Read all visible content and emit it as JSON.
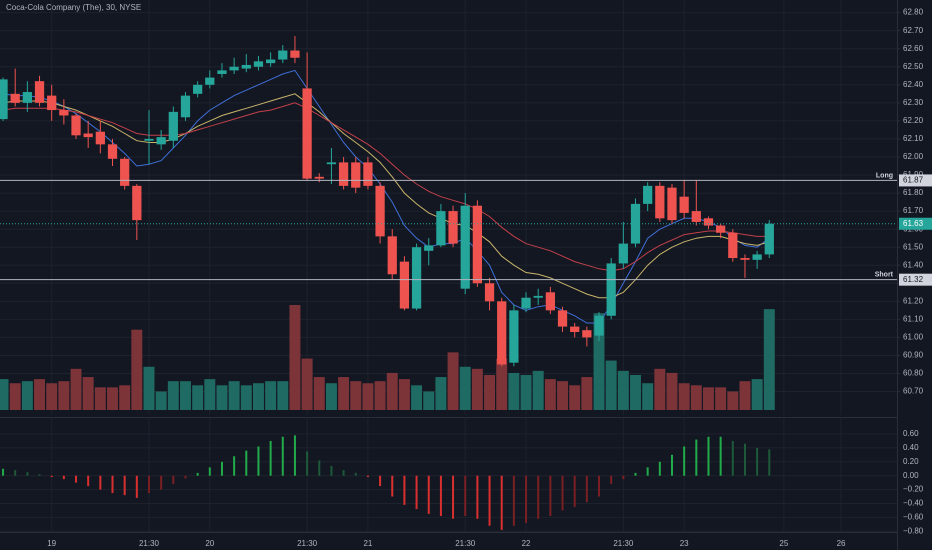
{
  "chart_data": {
    "type": "candlestick",
    "title": "Coca-Cola Company (The), 30, NYSE",
    "x": [
      0,
      1,
      2,
      3,
      4,
      5,
      6,
      7,
      8,
      9,
      10,
      11,
      12,
      13,
      14,
      15,
      16,
      17,
      18,
      19,
      20,
      21,
      22,
      23,
      24,
      25,
      26,
      27,
      28,
      29,
      30,
      31,
      32,
      33,
      34,
      35,
      36,
      37,
      38,
      39,
      40,
      41,
      42,
      43,
      44,
      45,
      46,
      47,
      48,
      49,
      50,
      51,
      52,
      53,
      54,
      55,
      56,
      57,
      58,
      59,
      60,
      61,
      62,
      63
    ],
    "xlim": [
      -0.25,
      73.5
    ],
    "xticks": [
      {
        "value": 4,
        "label": "19"
      },
      {
        "value": 12,
        "label": "21:30"
      },
      {
        "value": 17,
        "label": "20"
      },
      {
        "value": 25,
        "label": "21:30"
      },
      {
        "value": 30,
        "label": "21"
      },
      {
        "value": 38,
        "label": "21:30"
      },
      {
        "value": 43,
        "label": "22"
      },
      {
        "value": 51,
        "label": "21:30"
      },
      {
        "value": 56,
        "label": "23"
      },
      {
        "value": 64.2,
        "label": "25"
      },
      {
        "value": 68.9,
        "label": "26"
      }
    ],
    "open": [
      62.21,
      62.35,
      62.3,
      62.42,
      62.34,
      62.26,
      62.23,
      62.13,
      62.14,
      62.07,
      61.99,
      61.84,
      62.09,
      62.07,
      62.09,
      62.22,
      62.35,
      62.4,
      62.46,
      62.48,
      62.49,
      62.5,
      62.52,
      62.54,
      62.59,
      62.38,
      61.89,
      61.96,
      61.97,
      61.97,
      61.97,
      61.84,
      61.56,
      61.42,
      61.16,
      61.48,
      61.51,
      61.7,
      61.27,
      61.73,
      61.3,
      61.2,
      60.86,
      61.16,
      61.22,
      61.25,
      61.15,
      61.06,
      61.04,
      61.01,
      61.12,
      61.41,
      61.52,
      61.74,
      61.84,
      61.83,
      61.78,
      61.7,
      61.66,
      61.62,
      61.58,
      61.44,
      61.43,
      61.46
    ],
    "high": [
      62.44,
      62.49,
      62.42,
      62.45,
      62.4,
      62.32,
      62.24,
      62.2,
      62.2,
      62.1,
      62.0,
      61.85,
      62.26,
      62.15,
      62.28,
      62.36,
      62.42,
      62.48,
      62.52,
      62.55,
      62.57,
      62.56,
      62.58,
      62.62,
      62.67,
      62.58,
      61.91,
      62.05,
      62.0,
      62.0,
      62.0,
      61.86,
      61.6,
      61.45,
      61.52,
      61.55,
      61.74,
      61.73,
      61.8,
      61.76,
      61.33,
      61.22,
      61.18,
      61.25,
      61.27,
      61.28,
      61.17,
      61.08,
      61.06,
      61.14,
      61.44,
      61.64,
      61.77,
      61.86,
      61.86,
      61.85,
      61.87,
      61.87,
      61.67,
      61.63,
      61.6,
      61.46,
      61.48,
      61.65
    ],
    "low": [
      62.2,
      62.28,
      62.25,
      62.28,
      62.2,
      62.18,
      62.1,
      62.05,
      62.02,
      61.95,
      61.82,
      61.54,
      61.96,
      62.04,
      62.05,
      62.2,
      62.33,
      62.38,
      62.44,
      62.46,
      62.47,
      62.48,
      62.5,
      62.52,
      62.52,
      61.87,
      61.86,
      61.85,
      61.82,
      61.8,
      61.82,
      61.52,
      61.32,
      61.15,
      61.15,
      61.4,
      61.5,
      61.5,
      61.24,
      61.28,
      61.15,
      60.84,
      60.84,
      61.14,
      61.18,
      61.13,
      61.03,
      61.0,
      60.95,
      60.98,
      61.1,
      61.38,
      61.5,
      61.7,
      61.64,
      61.63,
      61.66,
      61.62,
      61.6,
      61.55,
      61.42,
      61.33,
      61.38,
      61.44
    ],
    "close": [
      62.43,
      62.3,
      62.36,
      62.3,
      62.26,
      62.23,
      62.12,
      62.11,
      62.07,
      61.99,
      61.84,
      61.65,
      62.1,
      62.11,
      62.25,
      62.34,
      62.4,
      62.44,
      62.48,
      62.5,
      62.51,
      62.53,
      62.54,
      62.59,
      62.55,
      61.88,
      61.88,
      61.97,
      61.84,
      61.83,
      61.84,
      61.56,
      61.35,
      61.16,
      61.5,
      61.51,
      61.7,
      61.52,
      61.73,
      61.3,
      61.2,
      60.85,
      61.15,
      61.22,
      61.23,
      61.15,
      61.06,
      61.03,
      61.0,
      61.12,
      61.41,
      61.52,
      61.74,
      61.84,
      61.66,
      61.65,
      61.69,
      61.64,
      61.62,
      61.58,
      61.44,
      61.43,
      61.46,
      61.63
    ],
    "up_color": "#26a69a",
    "down_color": "#ef5350",
    "ylim": [
      60.57,
      62.87
    ],
    "yticks": [
      {
        "value": 62.8,
        "label": "62.80"
      },
      {
        "value": 62.7,
        "label": "62.70"
      },
      {
        "value": 62.6,
        "label": "62.60"
      },
      {
        "value": 62.5,
        "label": "62.50"
      },
      {
        "value": 62.4,
        "label": "62.40"
      },
      {
        "value": 62.3,
        "label": "62.30"
      },
      {
        "value": 62.2,
        "label": "62.20"
      },
      {
        "value": 62.1,
        "label": "62.10"
      },
      {
        "value": 62.0,
        "label": "62.00"
      },
      {
        "value": 61.9,
        "label": "61.90"
      },
      {
        "value": 61.8,
        "label": "61.80"
      },
      {
        "value": 61.7,
        "label": "61.70"
      },
      {
        "value": 61.6,
        "label": "61.60"
      },
      {
        "value": 61.5,
        "label": "61.50"
      },
      {
        "value": 61.4,
        "label": "61.40"
      },
      {
        "value": 61.3,
        "label": "61.30"
      },
      {
        "value": 61.2,
        "label": "61.20"
      },
      {
        "value": 61.1,
        "label": "61.10"
      },
      {
        "value": 61.0,
        "label": "61.00"
      },
      {
        "value": 60.9,
        "label": "60.90"
      },
      {
        "value": 60.8,
        "label": "60.80"
      },
      {
        "value": 60.7,
        "label": "60.70"
      }
    ],
    "grid": true,
    "volume": [
      30,
      26,
      28,
      30,
      26,
      28,
      40,
      32,
      22,
      22,
      24,
      78,
      42,
      18,
      28,
      28,
      24,
      30,
      24,
      28,
      24,
      26,
      28,
      28,
      102,
      50,
      32,
      26,
      32,
      28,
      26,
      28,
      36,
      30,
      24,
      18,
      32,
      56,
      42,
      40,
      34,
      50,
      36,
      34,
      38,
      30,
      28,
      24,
      32,
      94,
      48,
      38,
      34,
      26,
      40,
      36,
      26,
      24,
      22,
      22,
      18,
      28,
      30,
      98
    ],
    "volume_up_color": "#1f6b64",
    "volume_down_color": "#7c3439",
    "moving_averages": [
      {
        "color": "#3f6fd8",
        "values": [
          62.35,
          62.34,
          62.34,
          62.33,
          62.31,
          62.28,
          62.24,
          62.19,
          62.14,
          62.08,
          62.02,
          61.95,
          61.96,
          61.98,
          62.05,
          62.12,
          62.2,
          62.26,
          62.3,
          62.34,
          62.37,
          62.4,
          62.43,
          62.46,
          62.48,
          62.38,
          62.28,
          62.18,
          62.08,
          62.0,
          61.94,
          61.85,
          61.75,
          61.62,
          61.55,
          61.5,
          61.52,
          61.52,
          61.55,
          61.48,
          61.4,
          61.25,
          61.18,
          61.15,
          61.17,
          61.18,
          61.15,
          61.12,
          61.08,
          61.08,
          61.18,
          61.3,
          61.42,
          61.55,
          61.6,
          61.63,
          61.66,
          61.66,
          61.64,
          61.61,
          61.55,
          61.51,
          61.5,
          61.55
        ]
      },
      {
        "color": "#c9b46a",
        "values": [
          62.3,
          62.31,
          62.31,
          62.31,
          62.3,
          62.28,
          62.26,
          62.23,
          62.2,
          62.17,
          62.13,
          62.09,
          62.08,
          62.08,
          62.1,
          62.13,
          62.17,
          62.2,
          62.23,
          62.25,
          62.27,
          62.29,
          62.31,
          62.33,
          62.35,
          62.3,
          62.25,
          62.19,
          62.13,
          62.08,
          62.03,
          61.97,
          61.89,
          61.8,
          61.74,
          61.69,
          61.66,
          61.63,
          61.62,
          61.58,
          61.53,
          61.45,
          61.4,
          61.36,
          61.35,
          61.33,
          61.3,
          61.27,
          61.24,
          61.22,
          61.22,
          61.25,
          61.32,
          61.4,
          61.46,
          61.5,
          61.53,
          61.55,
          61.56,
          61.56,
          61.54,
          61.52,
          61.51,
          61.53
        ]
      },
      {
        "color": "#c2404a",
        "values": [
          62.26,
          62.27,
          62.27,
          62.27,
          62.27,
          62.26,
          62.25,
          62.23,
          62.21,
          62.19,
          62.16,
          62.13,
          62.12,
          62.12,
          62.12,
          62.13,
          62.15,
          62.17,
          62.19,
          62.21,
          62.23,
          62.25,
          62.26,
          62.28,
          62.3,
          62.27,
          62.23,
          62.19,
          62.15,
          62.11,
          62.07,
          62.02,
          61.96,
          61.9,
          61.85,
          61.81,
          61.78,
          61.76,
          61.74,
          61.71,
          61.67,
          61.61,
          61.56,
          61.52,
          61.5,
          61.48,
          61.45,
          61.42,
          61.4,
          61.38,
          61.37,
          61.38,
          61.42,
          61.47,
          61.51,
          61.54,
          61.57,
          61.58,
          61.59,
          61.59,
          61.58,
          61.57,
          61.56,
          61.56
        ]
      }
    ],
    "levels": [
      {
        "label": "Long",
        "value": 61.87,
        "color": "#b2b5be"
      },
      {
        "label": "Short",
        "value": 61.32,
        "color": "#b2b5be"
      }
    ],
    "last_price": 61.63,
    "oscillator": {
      "values": [
        0.1,
        0.08,
        0.05,
        0.02,
        -0.02,
        -0.05,
        -0.1,
        -0.15,
        -0.2,
        -0.25,
        -0.28,
        -0.32,
        -0.25,
        -0.2,
        -0.12,
        -0.04,
        0.04,
        0.12,
        0.2,
        0.28,
        0.36,
        0.42,
        0.5,
        0.56,
        0.58,
        0.35,
        0.22,
        0.14,
        0.08,
        0.04,
        -0.02,
        -0.15,
        -0.3,
        -0.42,
        -0.48,
        -0.55,
        -0.58,
        -0.62,
        -0.58,
        -0.62,
        -0.72,
        -0.78,
        -0.72,
        -0.68,
        -0.62,
        -0.58,
        -0.5,
        -0.45,
        -0.38,
        -0.3,
        -0.12,
        -0.05,
        0.04,
        0.12,
        0.2,
        0.3,
        0.42,
        0.52,
        0.56,
        0.56,
        0.5,
        0.46,
        0.4,
        0.38
      ],
      "axis": "y2",
      "rising_positive_color": "#22ab4a",
      "falling_positive_color": "#1d5a3a",
      "falling_negative_color": "#d9302f",
      "rising_negative_color": "#7a1f22"
    },
    "y2lim": [
      -0.81,
      0.83
    ],
    "y2ticks": [
      {
        "value": 0.6,
        "label": "0.60"
      },
      {
        "value": 0.4,
        "label": "0.40"
      },
      {
        "value": 0.2,
        "label": "0.20"
      },
      {
        "value": 0,
        "label": "0.00"
      },
      {
        "value": -0.2,
        "label": "−0.20"
      },
      {
        "value": -0.4,
        "label": "−0.40"
      },
      {
        "value": -0.6,
        "label": "−0.60"
      },
      {
        "value": -0.8,
        "label": "−0.80"
      }
    ]
  }
}
